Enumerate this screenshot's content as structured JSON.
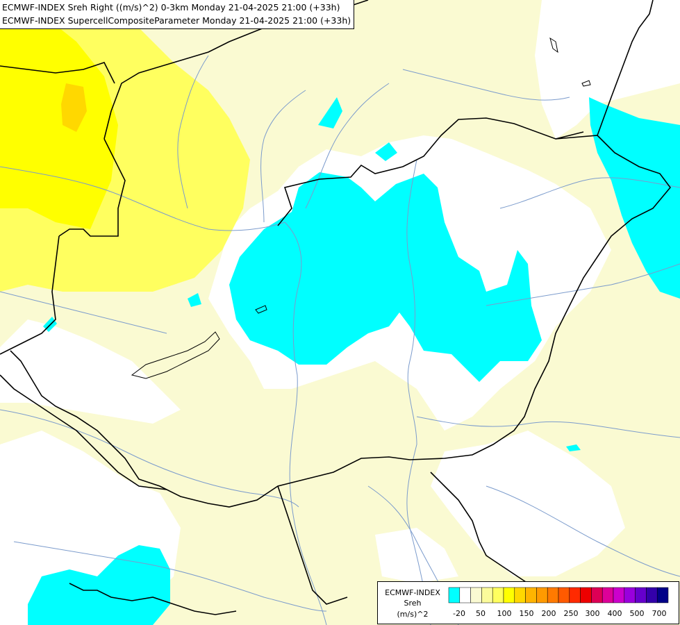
{
  "titles": {
    "line1": "ECMWF-INDEX Sreh Right ((m/s)^2) 0-3km Monday 21-04-2025 21:00 (+33h)",
    "line2": "ECMWF-INDEX SupercellCompositeParameter Monday 21-04-2025 21:00 (+33h)"
  },
  "legend": {
    "title": "ECMWF-INDEX",
    "variable": "Sreh",
    "unit": "(m/s)^2",
    "tick_labels": [
      "-20",
      "50",
      "100",
      "150",
      "200",
      "250",
      "300",
      "400",
      "500",
      "700"
    ],
    "swatches": [
      "#00ffff",
      "#ffffff",
      "#fafad2",
      "#fbfb9b",
      "#ffff5f",
      "#ffff00",
      "#ffd800",
      "#ffb400",
      "#ff9a00",
      "#ff7a00",
      "#ff5a00",
      "#ff2a00",
      "#ee0000",
      "#dd0055",
      "#dd0099",
      "#cc00cc",
      "#9900dd",
      "#6600cc",
      "#3300aa",
      "#000088"
    ]
  },
  "map_colors": {
    "cyan": "#00ffff",
    "pale_yellow": "#fafad2",
    "light_yellow": "#fbfb9b",
    "yellow": "#ffff5f",
    "bright_yellow": "#ffff00",
    "gold": "#ffd800",
    "border": "#000000",
    "river": "#7b9bcc"
  }
}
